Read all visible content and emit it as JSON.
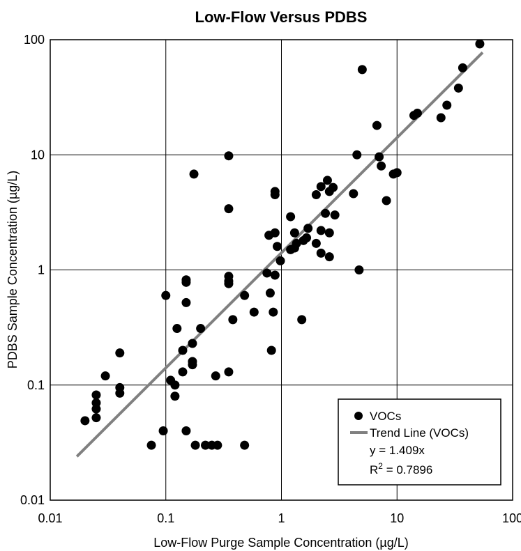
{
  "chart_data": {
    "type": "scatter",
    "title": "Low-Flow Versus PDBS",
    "xlabel": "Low-Flow Purge Sample Concentration (µg/L)",
    "ylabel": "PDBS Sample Concentration (µg/L)",
    "x_scale": "log",
    "y_scale": "log",
    "xlim": [
      0.01,
      100
    ],
    "ylim": [
      0.01,
      100
    ],
    "x_ticks": [
      "0.01",
      "0.1",
      "1",
      "10",
      "100"
    ],
    "y_ticks": [
      "0.01",
      "0.1",
      "1",
      "10",
      "100"
    ],
    "grid": true,
    "legend_position": "bottom-right",
    "legend": {
      "points_label": "VOCs",
      "line_label": "Trend Line (VOCs)",
      "equation": "y = 1.409x",
      "r2_prefix": "R",
      "r2_sup": "2",
      "r2_value": " = 0.7896"
    },
    "colors": {
      "points": "#000000",
      "trend": "#808080"
    },
    "series": [
      {
        "name": "VOCs",
        "points": [
          [
            0.02,
            0.049
          ],
          [
            0.025,
            0.052
          ],
          [
            0.025,
            0.062
          ],
          [
            0.025,
            0.07
          ],
          [
            0.025,
            0.082
          ],
          [
            0.03,
            0.12
          ],
          [
            0.04,
            0.085
          ],
          [
            0.04,
            0.095
          ],
          [
            0.04,
            0.19
          ],
          [
            0.075,
            0.03
          ],
          [
            0.095,
            0.04
          ],
          [
            0.1,
            0.6
          ],
          [
            0.11,
            0.11
          ],
          [
            0.12,
            0.08
          ],
          [
            0.12,
            0.1
          ],
          [
            0.125,
            0.31
          ],
          [
            0.14,
            0.13
          ],
          [
            0.14,
            0.2
          ],
          [
            0.15,
            0.04
          ],
          [
            0.15,
            0.52
          ],
          [
            0.15,
            0.78
          ],
          [
            0.15,
            0.82
          ],
          [
            0.17,
            0.15
          ],
          [
            0.17,
            0.16
          ],
          [
            0.17,
            0.23
          ],
          [
            0.175,
            6.8
          ],
          [
            0.18,
            0.03
          ],
          [
            0.2,
            0.31
          ],
          [
            0.22,
            0.03
          ],
          [
            0.25,
            0.03
          ],
          [
            0.27,
            0.12
          ],
          [
            0.28,
            0.03
          ],
          [
            0.35,
            0.13
          ],
          [
            0.35,
            0.76
          ],
          [
            0.35,
            0.8
          ],
          [
            0.35,
            0.88
          ],
          [
            0.35,
            3.4
          ],
          [
            0.35,
            9.8
          ],
          [
            0.38,
            0.37
          ],
          [
            0.48,
            0.03
          ],
          [
            0.48,
            0.6
          ],
          [
            0.58,
            0.43
          ],
          [
            0.75,
            0.94
          ],
          [
            0.78,
            2.0
          ],
          [
            0.8,
            0.63
          ],
          [
            0.82,
            0.2
          ],
          [
            0.85,
            0.43
          ],
          [
            0.88,
            0.9
          ],
          [
            0.88,
            2.1
          ],
          [
            0.88,
            4.5
          ],
          [
            0.88,
            4.8
          ],
          [
            0.92,
            1.6
          ],
          [
            0.98,
            1.2
          ],
          [
            1.2,
            1.5
          ],
          [
            1.2,
            2.9
          ],
          [
            1.3,
            1.55
          ],
          [
            1.35,
            1.7
          ],
          [
            1.3,
            2.1
          ],
          [
            1.5,
            0.37
          ],
          [
            1.55,
            1.8
          ],
          [
            1.65,
            1.9
          ],
          [
            1.7,
            2.3
          ],
          [
            2.0,
            4.5
          ],
          [
            2.0,
            1.7
          ],
          [
            2.2,
            1.4
          ],
          [
            2.2,
            2.2
          ],
          [
            2.2,
            5.3
          ],
          [
            2.4,
            3.1
          ],
          [
            2.5,
            6.0
          ],
          [
            2.6,
            1.3
          ],
          [
            2.6,
            2.1
          ],
          [
            2.6,
            4.8
          ],
          [
            2.8,
            5.2
          ],
          [
            2.9,
            3.0
          ],
          [
            4.2,
            4.6
          ],
          [
            4.5,
            10
          ],
          [
            4.7,
            1.0
          ],
          [
            5.0,
            55
          ],
          [
            6.7,
            18
          ],
          [
            7.0,
            9.6
          ],
          [
            7.3,
            8.0
          ],
          [
            8.1,
            4.0
          ],
          [
            9.3,
            6.8
          ],
          [
            10,
            7.0
          ],
          [
            14,
            22
          ],
          [
            15,
            23
          ],
          [
            24,
            21
          ],
          [
            27,
            27
          ],
          [
            34,
            38
          ],
          [
            37,
            57
          ],
          [
            52,
            92
          ]
        ]
      },
      {
        "name": "Trend Line (VOCs)",
        "line": {
          "slope": 1.409,
          "x_start": 0.017,
          "x_end": 55
        }
      }
    ]
  }
}
